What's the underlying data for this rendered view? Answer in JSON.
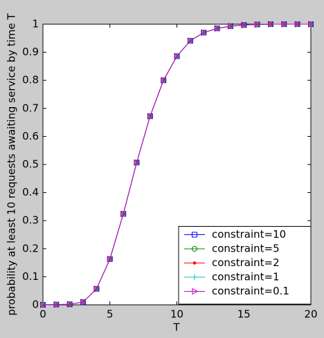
{
  "chart_data": {
    "type": "line",
    "xlabel": "T",
    "ylabel": "probability at least 10 requests awaiting service by time T",
    "x": [
      0,
      1,
      2,
      3,
      4,
      5,
      6,
      7,
      8,
      9,
      10,
      11,
      12,
      13,
      14,
      15,
      16,
      17,
      18,
      19,
      20
    ],
    "series": [
      {
        "name": "constraint=10",
        "color": "#0000ff",
        "marker": "square",
        "values": [
          0,
          0.001,
          0.002,
          0.01,
          0.057,
          0.163,
          0.324,
          0.507,
          0.672,
          0.8,
          0.886,
          0.941,
          0.97,
          0.985,
          0.993,
          0.997,
          0.999,
          1,
          1,
          1,
          1
        ]
      },
      {
        "name": "constraint=5",
        "color": "#008000",
        "marker": "circle",
        "values": [
          0,
          0.001,
          0.002,
          0.01,
          0.057,
          0.163,
          0.324,
          0.507,
          0.672,
          0.8,
          0.886,
          0.941,
          0.97,
          0.985,
          0.993,
          0.997,
          0.999,
          1,
          1,
          1,
          1
        ]
      },
      {
        "name": "constraint=2",
        "color": "#ff0000",
        "marker": "dot",
        "values": [
          0,
          0.001,
          0.002,
          0.01,
          0.057,
          0.163,
          0.324,
          0.507,
          0.672,
          0.8,
          0.886,
          0.941,
          0.97,
          0.985,
          0.993,
          0.997,
          0.999,
          1,
          1,
          1,
          1
        ]
      },
      {
        "name": "constraint=1",
        "color": "#00bfbf",
        "marker": "plus",
        "values": [
          0,
          0.001,
          0.002,
          0.01,
          0.057,
          0.163,
          0.324,
          0.507,
          0.672,
          0.8,
          0.886,
          0.941,
          0.97,
          0.985,
          0.993,
          0.997,
          0.999,
          1,
          1,
          1,
          1
        ]
      },
      {
        "name": "constraint=0.1",
        "color": "#bf00bf",
        "marker": "triangle-right",
        "values": [
          0,
          0.001,
          0.002,
          0.01,
          0.057,
          0.163,
          0.324,
          0.507,
          0.672,
          0.8,
          0.886,
          0.941,
          0.97,
          0.985,
          0.993,
          0.997,
          0.999,
          1,
          1,
          1,
          1
        ]
      }
    ],
    "xlim": [
      0,
      20
    ],
    "xticks": [
      0,
      5,
      10,
      15,
      20
    ],
    "ylim": [
      0,
      1
    ],
    "yticks": [
      0,
      0.1,
      0.2,
      0.3,
      0.4,
      0.5,
      0.6,
      0.7,
      0.8,
      0.9,
      1
    ],
    "grid": false,
    "legend": "lower right"
  }
}
